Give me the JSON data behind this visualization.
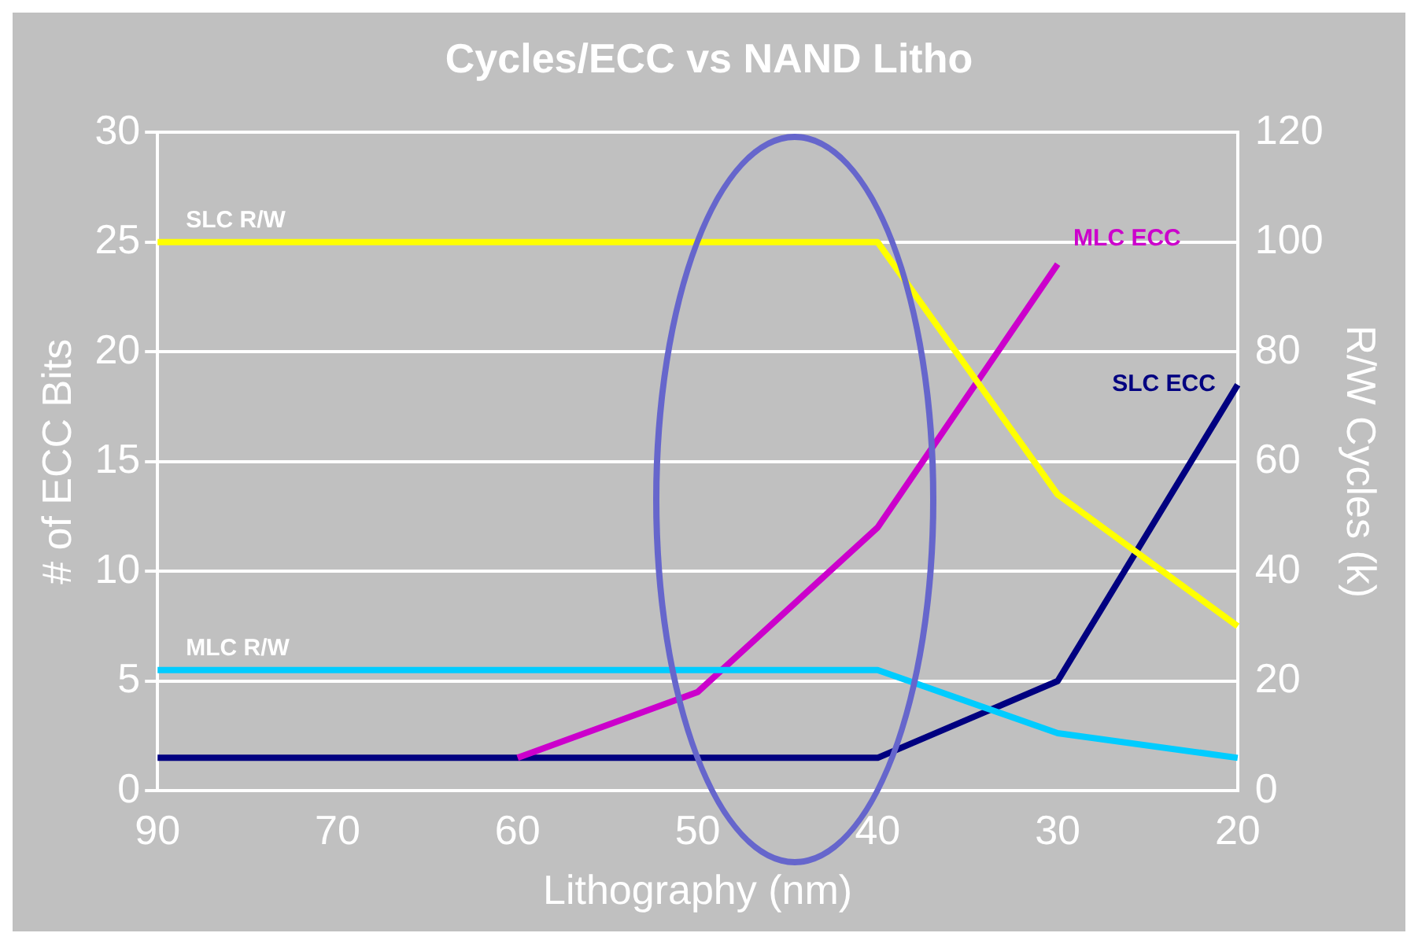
{
  "chart_data": {
    "type": "line",
    "title": "Cycles/ECC vs NAND Litho",
    "xlabel": "Lithography (nm)",
    "ylabel": "# of ECC Bits",
    "y2label": "R/W Cycles (k)",
    "categories": [
      "90",
      "70",
      "60",
      "50",
      "40",
      "30",
      "20"
    ],
    "series": [
      {
        "name": "SLC R/W",
        "color": "#ffff00",
        "axis": "y2",
        "values": [
          100,
          100,
          100,
          100,
          100,
          54,
          30
        ]
      },
      {
        "name": "MLC R/W",
        "color": "#00ccff",
        "axis": "y2",
        "values": [
          22,
          22,
          22,
          22,
          22,
          10.5,
          6
        ]
      },
      {
        "name": "MLC ECC",
        "color": "#cc00cc",
        "axis": "y",
        "values": [
          null,
          null,
          1.5,
          4.5,
          12,
          24,
          null
        ]
      },
      {
        "name": "SLC ECC",
        "color": "#000080",
        "axis": "y",
        "values": [
          1.5,
          1.5,
          1.5,
          1.5,
          1.5,
          5,
          18.5
        ]
      }
    ],
    "ylim": [
      0,
      30
    ],
    "yticks": [
      0,
      5,
      10,
      15,
      20,
      25,
      30
    ],
    "y2lim": [
      0,
      120
    ],
    "y2ticks": [
      0,
      20,
      40,
      60,
      80,
      100,
      120
    ],
    "grid": "y",
    "legend": false,
    "marker": "none",
    "line_style": "solid"
  }
}
